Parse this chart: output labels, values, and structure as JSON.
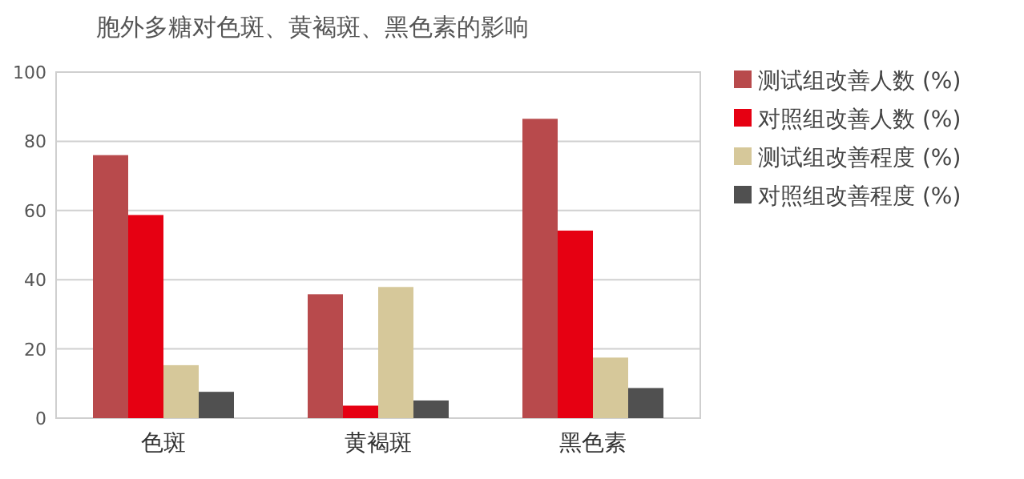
{
  "chart_data": {
    "type": "bar",
    "title": "胞外多糖对色斑、黄褐斑、黑色素的影响",
    "categories": [
      "色斑",
      "黄褐斑",
      "黑色素"
    ],
    "series": [
      {
        "name": "测试组改善人数 (%)",
        "color": "#b84a4c",
        "values": [
          76,
          35.8,
          86.5
        ]
      },
      {
        "name": "对照组改善人数 (%)",
        "color": "#e60012",
        "values": [
          58.7,
          3.6,
          54.2
        ]
      },
      {
        "name": "测试组改善程度 (%)",
        "color": "#d6c89a",
        "values": [
          15.3,
          37.9,
          17.5
        ]
      },
      {
        "name": "对照组改善程度 (%)",
        "color": "#505050",
        "values": [
          7.6,
          5.1,
          8.7
        ]
      }
    ],
    "ylim": [
      0,
      100
    ],
    "yticks": [
      0,
      20,
      40,
      60,
      80,
      100
    ],
    "grid": "y",
    "legend": "right"
  }
}
